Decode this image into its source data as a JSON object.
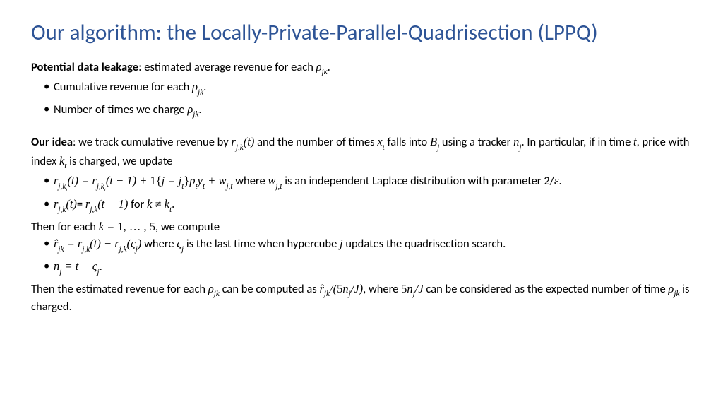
{
  "colors": {
    "title": "#2e5496",
    "body": "#000000",
    "background": "#ffffff"
  },
  "typography": {
    "title_fontsize": 31,
    "body_fontsize": 16.5,
    "title_weight": 400,
    "bold_weight": 700,
    "math_family": "Cambria Math"
  },
  "title": "Our algorithm: the Locally-Private-Parallel-Quadrisection (LPPQ)",
  "section1": {
    "lead_bold": "Potential data leakage",
    "lead_rest": ": estimated average revenue for each ",
    "lead_math": "ρ<sub>jk</sub>",
    "lead_end": ".",
    "bullets": [
      {
        "pre": "Cumulative revenue for each ",
        "math": "ρ<sub>jk</sub>",
        "post": "."
      },
      {
        "pre": "Number of times we charge ",
        "math": "ρ<sub>jk</sub>",
        "post": "."
      }
    ]
  },
  "section2": {
    "lead_bold": "Our idea",
    "lead_rest_1": ": we track cumulative revenue by ",
    "m1": "r<sub>j,k</sub>(t)",
    "lead_rest_2": " and the number of times ",
    "m2": "x<sub>t</sub>",
    "lead_rest_3": " falls into ",
    "m3": "B<sub>j</sub>",
    "lead_rest_4": " using a tracker ",
    "m4": "n<sub>j</sub>",
    "lead_rest_5": ". In particular, if in time ",
    "m5": "t",
    "lead_rest_6": ", price with index ",
    "m6": "k<sub>t</sub>",
    "lead_rest_7": " is charged, we update",
    "bullet1": {
      "m1": "r<sub>j,k<sub>t</sub></sub>(t) = r<sub>j,k<sub>t</sub></sub>(t − 1) + <span class=\"roman\">1{</span>j = j<sub>t</sub><span class=\"roman\">}</span>p<sub>t</sub>y<sub>t</sub> + w<sub>j,t</sub>",
      "mid": " where ",
      "m2": "w<sub>j,t</sub>",
      "post": " is an independent Laplace distribution with parameter 2/",
      "m3": "ε",
      "end": "."
    },
    "bullet2": {
      "m1": "r<sub>j,k</sub>(t)",
      "eq": "= ",
      "m2": "r<sub>j,k</sub>(t − 1)",
      "mid": " for ",
      "m3": "k ≠ k<sub>t</sub>",
      "end": "."
    },
    "then1_pre": "Then for each ",
    "then1_math": "k = <span class=\"roman\">1, … , 5</span>",
    "then1_post": ", we compute",
    "bullet3": {
      "m1": "r̂<sub>jk</sub> = r<sub>j,k</sub>(t) − r<sub>j,k</sub>(ς<sub>j</sub>)",
      "mid": " where ",
      "m2": "ς<sub>j</sub>",
      "post1": " is the last time when hypercube ",
      "m3": "j",
      "post2": " updates the quadrisection search."
    },
    "bullet4": {
      "m1": "n<sub>j</sub> = t − ς<sub>j</sub>",
      "end": "."
    },
    "final_1": "Then the estimated revenue for each ",
    "fm1": "ρ<sub>jk</sub>",
    "final_2": " can be computed as ",
    "fm2": "r̂<sub>jk</sub>/(<span class=\"roman\">5</span>n<sub>j</sub>/J)",
    "final_3": ", where ",
    "fm3": "<span class=\"roman\">5</span>n<sub>j</sub>/J",
    "final_4": " can be considered as the expected number of time ",
    "fm4": "ρ<sub>jk</sub>",
    "final_5": " is charged."
  }
}
